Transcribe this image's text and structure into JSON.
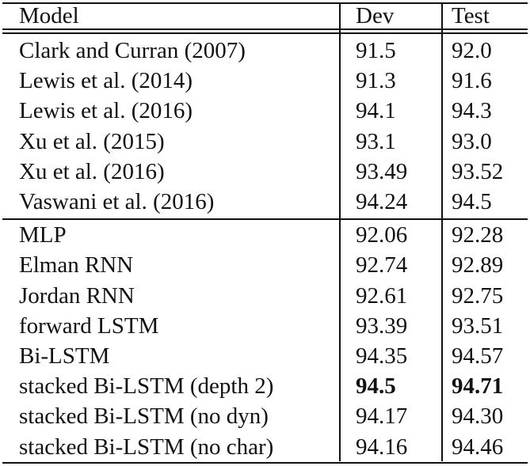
{
  "table": {
    "header": [
      "Model",
      "Dev",
      "Test"
    ],
    "groups": [
      [
        {
          "cells": [
            "Clark and Curran (2007)",
            "91.5",
            "92.0"
          ]
        },
        {
          "cells": [
            "Lewis et al. (2014)",
            "91.3",
            "91.6"
          ]
        },
        {
          "cells": [
            "Lewis et al. (2016)",
            "94.1",
            "94.3"
          ]
        },
        {
          "cells": [
            "Xu et al. (2015)",
            "93.1",
            "93.0"
          ]
        },
        {
          "cells": [
            "Xu et al. (2016)",
            "93.49",
            "93.52"
          ]
        },
        {
          "cells": [
            "Vaswani et al. (2016)",
            "94.24",
            "94.5"
          ]
        }
      ],
      [
        {
          "cells": [
            "MLP",
            "92.06",
            "92.28"
          ]
        },
        {
          "cells": [
            "Elman RNN",
            "92.74",
            "92.89"
          ]
        },
        {
          "cells": [
            "Jordan RNN",
            "92.61",
            "92.75"
          ]
        },
        {
          "cells": [
            "forward LSTM",
            "93.39",
            "93.51"
          ]
        },
        {
          "cells": [
            "Bi-LSTM",
            "94.35",
            "94.57"
          ]
        },
        {
          "cells": [
            "stacked Bi-LSTM (depth 2)",
            "94.5",
            "94.71"
          ],
          "bold": [
            1,
            2
          ]
        },
        {
          "cells": [
            "stacked Bi-LSTM (no dyn)",
            "94.17",
            "94.30"
          ]
        },
        {
          "cells": [
            "stacked Bi-LSTM (no char)",
            "94.16",
            "94.46"
          ]
        }
      ]
    ]
  }
}
